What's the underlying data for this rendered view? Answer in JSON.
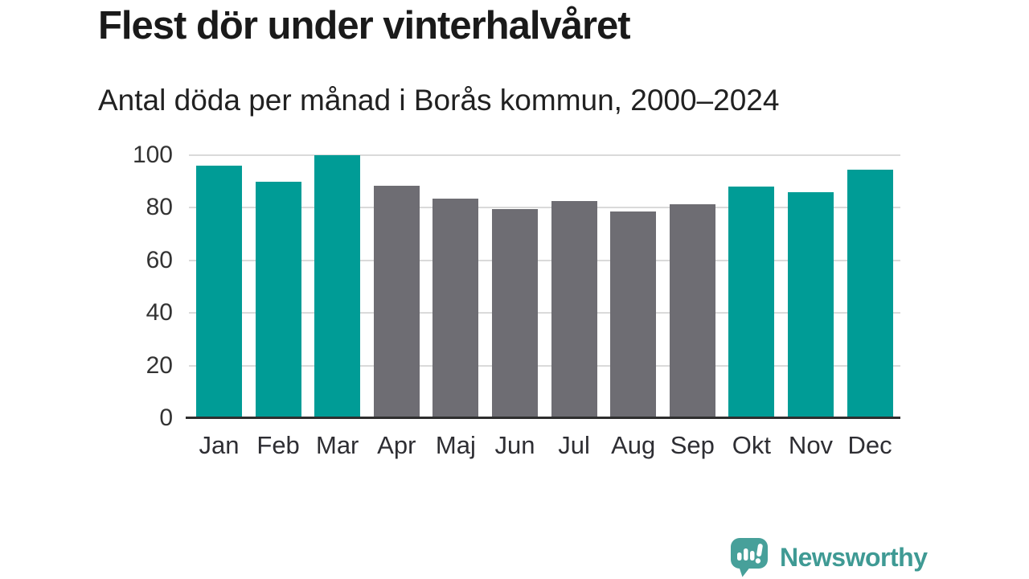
{
  "chart_data": {
    "type": "bar",
    "title": "Flest dör under vinterhalvåret",
    "subtitle": "Antal döda per månad i Borås kommun, 2000–2024",
    "categories": [
      "Jan",
      "Feb",
      "Mar",
      "Apr",
      "Maj",
      "Jun",
      "Jul",
      "Aug",
      "Sep",
      "Okt",
      "Nov",
      "Dec"
    ],
    "values": [
      96,
      90,
      100,
      88.5,
      83.5,
      79.5,
      82.5,
      78.5,
      81.5,
      88,
      86,
      94.5
    ],
    "bar_groups": [
      "winter",
      "winter",
      "winter",
      "summer",
      "summer",
      "summer",
      "summer",
      "summer",
      "summer",
      "winter",
      "winter",
      "winter"
    ],
    "group_colors": {
      "winter": "#009c96",
      "summer": "#6e6d73"
    },
    "xlabel": "",
    "ylabel": "",
    "ylim": [
      0,
      100
    ],
    "yticks": [
      0,
      20,
      40,
      60,
      80,
      100
    ],
    "grid": true,
    "legend": "none",
    "gridline_color": "#dadada",
    "axis_color": "#2e2e2e"
  },
  "branding": {
    "logo_text": "Newsworthy",
    "logo_color": "#3f9a94",
    "logo_icon": "bar-chart-speech-bubble-icon"
  }
}
